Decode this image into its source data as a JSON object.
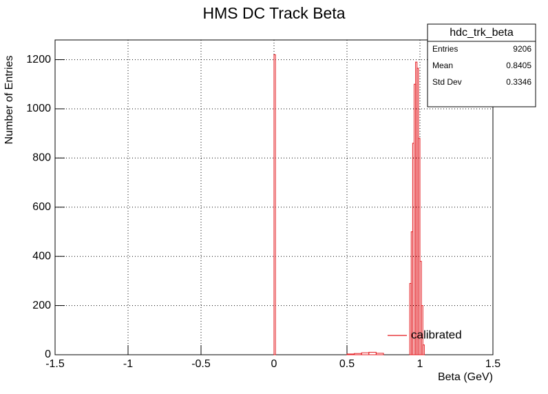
{
  "chart_data": {
    "type": "histogram",
    "title": "HMS DC Track Beta",
    "x_label": "Beta (GeV)",
    "y_label": "Number of Entries",
    "bins": [
      -1.5,
      0,
      0.01,
      0.5,
      0.55,
      0.6,
      0.65,
      0.7,
      0.75,
      0.93,
      0.94,
      0.95,
      0.96,
      0.97,
      0.98,
      0.99,
      1.0,
      1.01,
      1.02,
      1.03,
      1.5
    ],
    "series": [
      {
        "name": "calibrated",
        "color": "#e3161b",
        "values": [
          0,
          1220,
          0,
          3,
          5,
          8,
          10,
          6,
          0,
          290,
          500,
          860,
          1100,
          1190,
          1165,
          880,
          380,
          200,
          40,
          0
        ]
      }
    ],
    "xlim": [
      -1.5,
      1.5
    ],
    "xticks": [
      -1.5,
      -1,
      -0.5,
      0,
      0.5,
      1,
      1.5
    ],
    "ylim": [
      0,
      1280
    ],
    "yticks": [
      0,
      200,
      400,
      600,
      800,
      1000,
      1200
    ],
    "grid": true,
    "legend": "lower right",
    "stats": {
      "name": "hdc_trk_beta",
      "rows": [
        {
          "label": "Entries",
          "value": 9206
        },
        {
          "label": "Mean",
          "value": 0.8405
        },
        {
          "label": "Std Dev",
          "value": 0.3346
        }
      ]
    }
  }
}
